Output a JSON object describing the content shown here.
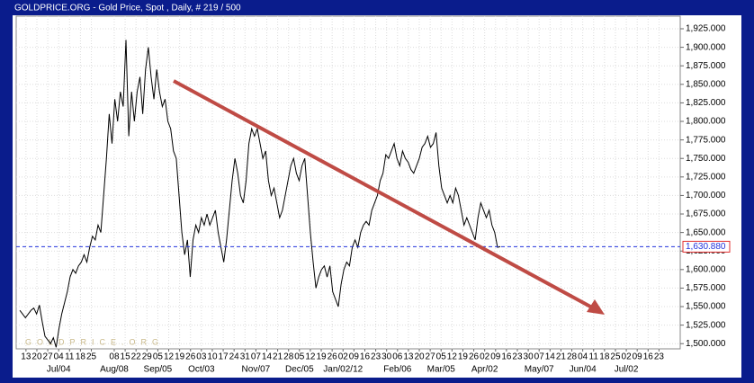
{
  "chart_data": {
    "type": "line",
    "title": "GOLDPRICE.ORG - Gold Price, Spot , Daily, # 219 / 500",
    "watermark": "GOLDPRICE.ORG",
    "grid": true,
    "current_price": {
      "value": 1630.88,
      "label": "1,630.880"
    },
    "xlim": [
      -0.3,
      237.4
    ],
    "ylim": [
      1493,
      1942
    ],
    "yticks": [
      {
        "value": 1500,
        "label": "1,500.000"
      },
      {
        "value": 1525,
        "label": "1,525.000"
      },
      {
        "value": 1550,
        "label": "1,550.000"
      },
      {
        "value": 1575,
        "label": "1,575.000"
      },
      {
        "value": 1600,
        "label": "1,600.000"
      },
      {
        "value": 1625,
        "label": "1,625.000"
      },
      {
        "value": 1650,
        "label": "1,650.000"
      },
      {
        "value": 1675,
        "label": "1,675.000"
      },
      {
        "value": 1700,
        "label": "1,700.000"
      },
      {
        "value": 1725,
        "label": "1,725.000"
      },
      {
        "value": 1750,
        "label": "1,750.000"
      },
      {
        "value": 1775,
        "label": "1,775.000"
      },
      {
        "value": 1800,
        "label": "1,800.000"
      },
      {
        "value": 1825,
        "label": "1,825.000"
      },
      {
        "value": 1850,
        "label": "1,850.000"
      },
      {
        "value": 1875,
        "label": "1,875.000"
      },
      {
        "value": 1900,
        "label": "1,900.000"
      },
      {
        "value": 1925,
        "label": "1,925.000"
      }
    ],
    "xticks": [
      {
        "value": 3.2,
        "label": "13"
      },
      {
        "value": 7.1,
        "label": "20"
      },
      {
        "value": 11.0,
        "label": "27"
      },
      {
        "value": 14.9,
        "label": "04"
      },
      {
        "value": 18.8,
        "label": "11"
      },
      {
        "value": 22.7,
        "label": "18"
      },
      {
        "value": 26.6,
        "label": "25"
      },
      {
        "value": 34.8,
        "label": "08"
      },
      {
        "value": 38.7,
        "label": "15"
      },
      {
        "value": 42.6,
        "label": "22"
      },
      {
        "value": 46.5,
        "label": "29"
      },
      {
        "value": 50.4,
        "label": "05"
      },
      {
        "value": 54.3,
        "label": "12"
      },
      {
        "value": 58.2,
        "label": "19"
      },
      {
        "value": 62.1,
        "label": "26"
      },
      {
        "value": 66.0,
        "label": "03"
      },
      {
        "value": 69.9,
        "label": "10"
      },
      {
        "value": 73.8,
        "label": "17"
      },
      {
        "value": 77.7,
        "label": "24"
      },
      {
        "value": 81.6,
        "label": "31"
      },
      {
        "value": 85.5,
        "label": "07"
      },
      {
        "value": 89.4,
        "label": "14"
      },
      {
        "value": 93.3,
        "label": "21"
      },
      {
        "value": 97.2,
        "label": "28"
      },
      {
        "value": 101.1,
        "label": "05"
      },
      {
        "value": 105.0,
        "label": "12"
      },
      {
        "value": 108.9,
        "label": "19"
      },
      {
        "value": 112.8,
        "label": "26"
      },
      {
        "value": 116.7,
        "label": "02"
      },
      {
        "value": 120.6,
        "label": "09"
      },
      {
        "value": 124.5,
        "label": "16"
      },
      {
        "value": 128.4,
        "label": "23"
      },
      {
        "value": 132.3,
        "label": "30"
      },
      {
        "value": 136.2,
        "label": "06"
      },
      {
        "value": 140.1,
        "label": "13"
      },
      {
        "value": 144.0,
        "label": "20"
      },
      {
        "value": 147.9,
        "label": "27"
      },
      {
        "value": 151.8,
        "label": "05"
      },
      {
        "value": 155.7,
        "label": "12"
      },
      {
        "value": 159.6,
        "label": "19"
      },
      {
        "value": 163.5,
        "label": "26"
      },
      {
        "value": 167.4,
        "label": "02"
      },
      {
        "value": 171.3,
        "label": "09"
      },
      {
        "value": 175.2,
        "label": "16"
      },
      {
        "value": 179.1,
        "label": "23"
      },
      {
        "value": 183.0,
        "label": "30"
      },
      {
        "value": 186.9,
        "label": "07"
      },
      {
        "value": 190.8,
        "label": "14"
      },
      {
        "value": 194.7,
        "label": "21"
      },
      {
        "value": 198.6,
        "label": "28"
      },
      {
        "value": 202.5,
        "label": "04"
      },
      {
        "value": 206.4,
        "label": "11"
      },
      {
        "value": 210.3,
        "label": "18"
      },
      {
        "value": 214.2,
        "label": "25"
      },
      {
        "value": 218.1,
        "label": "02"
      },
      {
        "value": 222.0,
        "label": "09"
      },
      {
        "value": 225.9,
        "label": "16"
      },
      {
        "value": 229.8,
        "label": "23"
      }
    ],
    "month_ticks": [
      {
        "value": 14.9,
        "label": "Jul/04"
      },
      {
        "value": 34.8,
        "label": "Aug/08"
      },
      {
        "value": 50.4,
        "label": "Sep/05"
      },
      {
        "value": 66.0,
        "label": "Oct/03"
      },
      {
        "value": 85.5,
        "label": "Nov/07"
      },
      {
        "value": 101.1,
        "label": "Dec/05"
      },
      {
        "value": 116.7,
        "label": "Jan/02/12"
      },
      {
        "value": 136.2,
        "label": "Feb/06"
      },
      {
        "value": 151.8,
        "label": "Mar/05"
      },
      {
        "value": 167.4,
        "label": "Apr/02"
      },
      {
        "value": 186.9,
        "label": "May/07"
      },
      {
        "value": 202.5,
        "label": "Jun/04"
      },
      {
        "value": 218.1,
        "label": "Jul/02"
      }
    ],
    "series": [
      {
        "name": "Gold Price",
        "color": "#000000",
        "x": [
          1,
          2,
          3,
          4,
          5,
          6,
          7,
          8,
          9,
          10,
          11,
          12,
          13,
          14,
          15,
          16,
          17,
          18,
          19,
          20,
          21,
          22,
          23,
          24,
          25,
          26,
          27,
          28,
          29,
          30,
          31,
          32,
          33,
          34,
          35,
          36,
          37,
          38,
          39,
          40,
          41,
          42,
          43,
          44,
          45,
          46,
          47,
          48,
          49,
          50,
          51,
          52,
          53,
          54,
          55,
          56,
          57,
          58,
          59,
          60,
          61,
          62,
          63,
          64,
          65,
          66,
          67,
          68,
          69,
          70,
          71,
          72,
          73,
          74,
          75,
          76,
          77,
          78,
          79,
          80,
          81,
          82,
          83,
          84,
          85,
          86,
          87,
          88,
          89,
          90,
          91,
          92,
          93,
          94,
          95,
          96,
          97,
          98,
          99,
          100,
          101,
          102,
          103,
          104,
          105,
          106,
          107,
          108,
          109,
          110,
          111,
          112,
          113,
          114,
          115,
          116,
          117,
          118,
          119,
          120,
          121,
          122,
          123,
          124,
          125,
          126,
          127,
          128,
          129,
          130,
          131,
          132,
          133,
          134,
          135,
          136,
          137,
          138,
          139,
          140,
          141,
          142,
          143,
          144,
          145,
          146,
          147,
          148,
          149,
          150,
          151,
          152,
          153,
          154,
          155,
          156,
          157,
          158,
          159,
          160,
          161,
          162,
          163,
          164,
          165,
          166,
          167,
          168,
          169,
          170,
          171,
          172,
          173
        ],
        "values": [
          1545,
          1540,
          1535,
          1540,
          1545,
          1548,
          1540,
          1552,
          1530,
          1510,
          1505,
          1500,
          1508,
          1495,
          1520,
          1540,
          1555,
          1570,
          1590,
          1600,
          1595,
          1605,
          1610,
          1620,
          1610,
          1630,
          1645,
          1640,
          1660,
          1650,
          1700,
          1750,
          1810,
          1770,
          1830,
          1800,
          1840,
          1820,
          1910,
          1780,
          1840,
          1800,
          1840,
          1860,
          1810,
          1870,
          1900,
          1860,
          1830,
          1870,
          1840,
          1820,
          1830,
          1800,
          1790,
          1760,
          1750,
          1700,
          1650,
          1620,
          1640,
          1590,
          1640,
          1660,
          1650,
          1670,
          1660,
          1675,
          1660,
          1670,
          1680,
          1650,
          1630,
          1610,
          1640,
          1680,
          1720,
          1750,
          1730,
          1700,
          1690,
          1720,
          1770,
          1790,
          1780,
          1790,
          1770,
          1750,
          1760,
          1720,
          1700,
          1710,
          1690,
          1670,
          1680,
          1700,
          1720,
          1740,
          1750,
          1730,
          1720,
          1740,
          1750,
          1700,
          1650,
          1610,
          1575,
          1590,
          1600,
          1605,
          1590,
          1605,
          1570,
          1560,
          1550,
          1580,
          1600,
          1610,
          1605,
          1630,
          1640,
          1630,
          1650,
          1660,
          1665,
          1660,
          1680,
          1690,
          1700,
          1720,
          1730,
          1755,
          1750,
          1760,
          1770,
          1750,
          1740,
          1760,
          1750,
          1745,
          1735,
          1730,
          1740,
          1750,
          1765,
          1770,
          1780,
          1765,
          1770,
          1785,
          1740,
          1710,
          1700,
          1690,
          1700,
          1690,
          1710,
          1700,
          1680,
          1660,
          1670,
          1660,
          1650,
          1640,
          1670,
          1690,
          1680,
          1670,
          1680,
          1660,
          1650,
          1630,
          1631
        ]
      }
    ]
  }
}
